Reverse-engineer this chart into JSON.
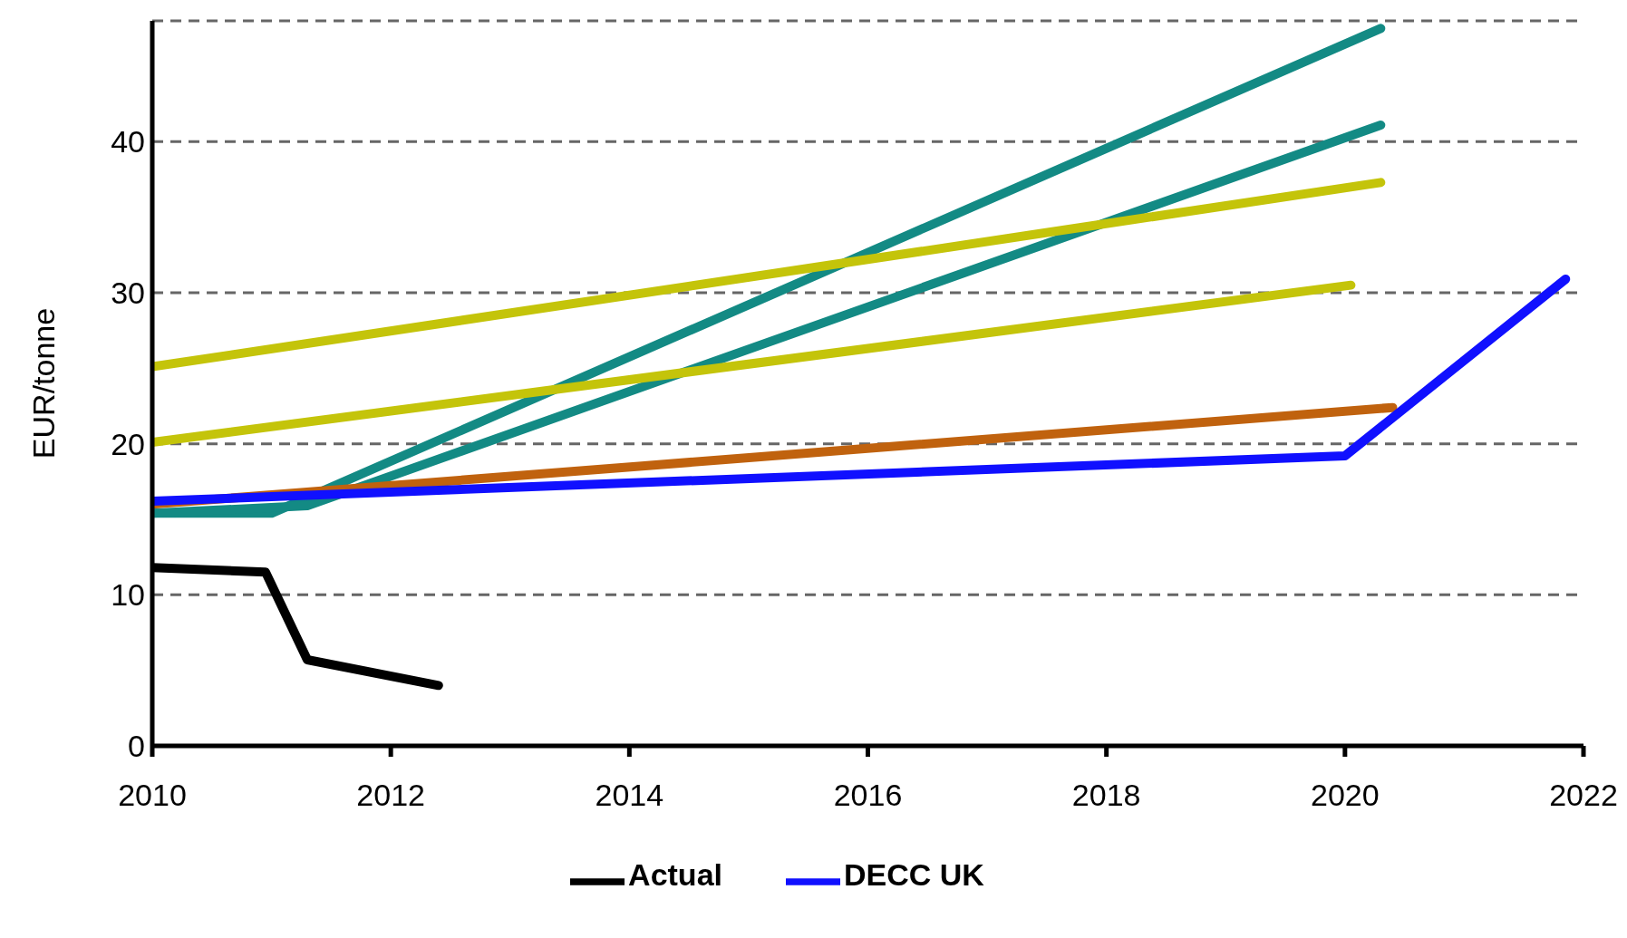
{
  "chart_data": {
    "type": "line",
    "ylabel": "EUR/tonne",
    "xlim": [
      2010,
      2022
    ],
    "xticks": [
      2010,
      2012,
      2014,
      2016,
      2018,
      2020,
      2022
    ],
    "ylim": [
      0,
      48
    ],
    "yticks": [
      0,
      10,
      20,
      30,
      40
    ],
    "grid": "y",
    "legend": "bottom",
    "marker": "none",
    "line_style": "solid",
    "series": [
      {
        "color": "#138a84",
        "x": [
          2010,
          2011,
          2020.3
        ],
        "values": [
          15.4,
          15.4,
          47.5
        ]
      },
      {
        "color": "#138a84",
        "x": [
          2010,
          2011.3,
          2020.3
        ],
        "values": [
          15.4,
          15.9,
          41.1
        ]
      },
      {
        "color": "#c0620e",
        "x": [
          2010,
          2020.4
        ],
        "values": [
          16,
          22.4
        ]
      },
      {
        "name": "DECC UK",
        "color": "#1010ff",
        "x": [
          2010,
          2020,
          2021.85
        ],
        "values": [
          16.2,
          19.2,
          30.9
        ]
      },
      {
        "color": "#c4c40a",
        "x": [
          2010,
          2020.3
        ],
        "values": [
          25.1,
          37.3
        ]
      },
      {
        "color": "#c4c40a",
        "x": [
          2010,
          2020.05
        ],
        "values": [
          20.1,
          30.5
        ]
      },
      {
        "name": "Actual",
        "color": "#000000",
        "x": [
          2010,
          2010.95,
          2011.3,
          2012.4
        ],
        "values": [
          11.8,
          11.5,
          5.7,
          4.0
        ]
      }
    ]
  }
}
